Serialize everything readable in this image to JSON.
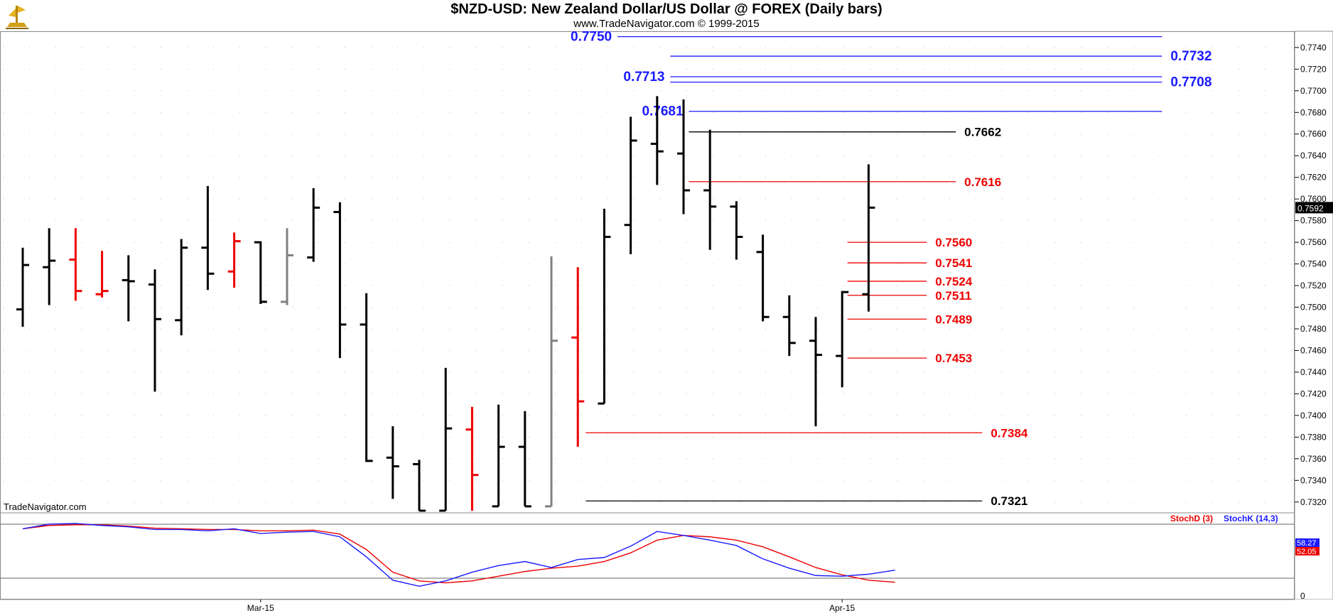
{
  "header": {
    "title": "$NZD-USD:  New Zealand Dollar/US Dollar @ FOREX  (Daily bars)",
    "subtitle": "www.TradeNavigator.com © 1999-2015",
    "watermark": "TradeNavigator.com"
  },
  "colors": {
    "up_bar": "#000000",
    "down_bar": "#ee0000",
    "neutral_bar": "#808080",
    "resistance": "#1a1aff",
    "support": "#ee0000",
    "pivot": "#000000",
    "stoch_d": "#ee0000",
    "stoch_k": "#1a1aff",
    "grid": "#b8b8b8"
  },
  "chart_data": [
    {
      "type": "ohlc",
      "title": "$NZD-USD:  New Zealand Dollar/US Dollar @ FOREX  (Daily bars)",
      "ylim": [
        0.731,
        0.7755
      ],
      "y_ticks": [
        "0.7320",
        "0.7340",
        "0.7360",
        "0.7380",
        "0.7400",
        "0.7420",
        "0.7440",
        "0.7460",
        "0.7480",
        "0.7500",
        "0.7520",
        "0.7540",
        "0.7560",
        "0.7580",
        "0.7600",
        "0.7620",
        "0.7640",
        "0.7660",
        "0.7680",
        "0.7700",
        "0.7720",
        "0.7740"
      ],
      "x_labels": [
        {
          "label": "Mar-15",
          "bar_index": 9
        },
        {
          "label": "Apr-15",
          "bar_index": 31
        }
      ],
      "last_price_label": "0.7592",
      "bars": [
        {
          "o": 0.7498,
          "h": 0.7555,
          "l": 0.7482,
          "c": 0.7539,
          "color": "up"
        },
        {
          "o": 0.7537,
          "h": 0.7573,
          "l": 0.7502,
          "c": 0.7543,
          "color": "up"
        },
        {
          "o": 0.7544,
          "h": 0.7573,
          "l": 0.7506,
          "c": 0.7515,
          "color": "down"
        },
        {
          "o": 0.7512,
          "h": 0.7552,
          "l": 0.7509,
          "c": 0.7515,
          "color": "down"
        },
        {
          "o": 0.7525,
          "h": 0.7548,
          "l": 0.7487,
          "c": 0.7524,
          "color": "up"
        },
        {
          "o": 0.7521,
          "h": 0.7535,
          "l": 0.7422,
          "c": 0.7489,
          "color": "up"
        },
        {
          "o": 0.7488,
          "h": 0.7563,
          "l": 0.7474,
          "c": 0.7555,
          "color": "up"
        },
        {
          "o": 0.7555,
          "h": 0.7612,
          "l": 0.7516,
          "c": 0.7531,
          "color": "up"
        },
        {
          "o": 0.7533,
          "h": 0.7569,
          "l": 0.7518,
          "c": 0.7561,
          "color": "down"
        },
        {
          "o": 0.756,
          "h": 0.7561,
          "l": 0.7503,
          "c": 0.7505,
          "color": "up"
        },
        {
          "o": 0.7505,
          "h": 0.7573,
          "l": 0.7502,
          "c": 0.7548,
          "color": "neutral"
        },
        {
          "o": 0.7546,
          "h": 0.761,
          "l": 0.7542,
          "c": 0.7592,
          "color": "up"
        },
        {
          "o": 0.7588,
          "h": 0.7597,
          "l": 0.7453,
          "c": 0.7484,
          "color": "up"
        },
        {
          "o": 0.7484,
          "h": 0.7513,
          "l": 0.7357,
          "c": 0.7358,
          "color": "up"
        },
        {
          "o": 0.7361,
          "h": 0.739,
          "l": 0.7323,
          "c": 0.7353,
          "color": "up"
        },
        {
          "o": 0.7355,
          "h": 0.7359,
          "l": 0.7312,
          "c": 0.7312,
          "color": "up"
        },
        {
          "o": 0.7312,
          "h": 0.7444,
          "l": 0.7312,
          "c": 0.7388,
          "color": "up"
        },
        {
          "o": 0.7387,
          "h": 0.7408,
          "l": 0.7312,
          "c": 0.7345,
          "color": "down"
        },
        {
          "o": 0.7316,
          "h": 0.741,
          "l": 0.7316,
          "c": 0.7371,
          "color": "up"
        },
        {
          "o": 0.7371,
          "h": 0.7404,
          "l": 0.7316,
          "c": 0.7316,
          "color": "up"
        },
        {
          "o": 0.7316,
          "h": 0.7547,
          "l": 0.7316,
          "c": 0.7469,
          "color": "neutral"
        },
        {
          "o": 0.7472,
          "h": 0.7537,
          "l": 0.7371,
          "c": 0.7413,
          "color": "down"
        },
        {
          "o": 0.7411,
          "h": 0.7591,
          "l": 0.7411,
          "c": 0.7565,
          "color": "up"
        },
        {
          "o": 0.7576,
          "h": 0.7676,
          "l": 0.7549,
          "c": 0.7654,
          "color": "up"
        },
        {
          "o": 0.7651,
          "h": 0.7695,
          "l": 0.7613,
          "c": 0.7644,
          "color": "up"
        },
        {
          "o": 0.7642,
          "h": 0.7692,
          "l": 0.7586,
          "c": 0.7608,
          "color": "up"
        },
        {
          "o": 0.7608,
          "h": 0.7664,
          "l": 0.7553,
          "c": 0.7593,
          "color": "up"
        },
        {
          "o": 0.7593,
          "h": 0.7598,
          "l": 0.7544,
          "c": 0.7565,
          "color": "up"
        },
        {
          "o": 0.7551,
          "h": 0.7567,
          "l": 0.7487,
          "c": 0.7491,
          "color": "up"
        },
        {
          "o": 0.7491,
          "h": 0.7511,
          "l": 0.7455,
          "c": 0.7467,
          "color": "up"
        },
        {
          "o": 0.7469,
          "h": 0.7491,
          "l": 0.739,
          "c": 0.7456,
          "color": "up"
        },
        {
          "o": 0.7455,
          "h": 0.7515,
          "l": 0.7426,
          "c": 0.7514,
          "color": "up"
        },
        {
          "o": 0.7512,
          "h": 0.7632,
          "l": 0.7496,
          "c": 0.7592,
          "color": "up"
        }
      ],
      "levels": [
        {
          "value": 0.775,
          "label": "0.7750",
          "color": "resistance",
          "from_bar": 22.5,
          "to_bar": 43.1,
          "label_side": "left"
        },
        {
          "value": 0.7732,
          "label": "0.7732",
          "color": "resistance",
          "from_bar": 24.5,
          "to_bar": 43.1,
          "label_side": "right"
        },
        {
          "value": 0.7713,
          "label": "0.7713",
          "color": "resistance",
          "from_bar": 24.5,
          "to_bar": 43.1,
          "label_side": "left"
        },
        {
          "value": 0.7708,
          "label": "0.7708",
          "color": "resistance",
          "from_bar": 24.5,
          "to_bar": 43.1,
          "label_side": "right"
        },
        {
          "value": 0.7681,
          "label": "0.7681",
          "color": "resistance",
          "from_bar": 25.2,
          "to_bar": 43.1,
          "label_side": "left"
        },
        {
          "value": 0.7662,
          "label": "0.7662",
          "color": "pivot",
          "from_bar": 25.2,
          "to_bar": 35.3,
          "label_side": "right"
        },
        {
          "value": 0.7616,
          "label": "0.7616",
          "color": "support",
          "from_bar": 25.2,
          "to_bar": 35.3,
          "label_side": "right"
        },
        {
          "value": 0.756,
          "label": "0.7560",
          "color": "support",
          "from_bar": 31.2,
          "to_bar": 34.2,
          "label_side": "right"
        },
        {
          "value": 0.7541,
          "label": "0.7541",
          "color": "support",
          "from_bar": 31.2,
          "to_bar": 34.2,
          "label_side": "right"
        },
        {
          "value": 0.7524,
          "label": "0.7524",
          "color": "support",
          "from_bar": 31.2,
          "to_bar": 34.2,
          "label_side": "right"
        },
        {
          "value": 0.7511,
          "label": "0.7511",
          "color": "support",
          "from_bar": 31.2,
          "to_bar": 34.2,
          "label_side": "right"
        },
        {
          "value": 0.7489,
          "label": "0.7489",
          "color": "support",
          "from_bar": 31.2,
          "to_bar": 34.2,
          "label_side": "right"
        },
        {
          "value": 0.7453,
          "label": "0.7453",
          "color": "support",
          "from_bar": 31.2,
          "to_bar": 34.2,
          "label_side": "right"
        },
        {
          "value": 0.7384,
          "label": "0.7384",
          "color": "support",
          "from_bar": 21.3,
          "to_bar": 36.3,
          "label_side": "right"
        },
        {
          "value": 0.7321,
          "label": "0.7321",
          "color": "pivot",
          "from_bar": 21.3,
          "to_bar": 36.3,
          "label_side": "right"
        }
      ]
    },
    {
      "type": "line",
      "title": "",
      "ylim": [
        0,
        100
      ],
      "y_ticks": [
        "0"
      ],
      "legend": [
        "StochD (3)",
        "StochK (14,3)"
      ],
      "legend_position": "top-right",
      "value_labels": [
        "58.27",
        "52.05"
      ],
      "series": [
        {
          "name": "StochD (3)",
          "color": "stoch_d",
          "values": [
            91,
            96,
            97,
            97,
            95,
            92,
            91,
            90,
            90,
            88,
            88,
            89,
            83,
            60,
            26,
            13,
            10,
            13,
            20,
            27,
            32,
            35,
            42,
            55,
            74,
            81,
            79,
            74,
            64,
            49,
            33,
            22,
            14,
            11
          ]
        },
        {
          "name": "StochK (14,3)",
          "color": "stoch_k",
          "values": [
            91,
            98,
            99,
            96,
            94,
            90,
            90,
            88,
            91,
            84,
            86,
            87,
            79,
            49,
            14,
            5,
            13,
            26,
            36,
            42,
            33,
            45,
            48,
            65,
            87,
            81,
            74,
            66,
            46,
            32,
            21,
            20,
            23,
            29
          ]
        }
      ]
    }
  ]
}
